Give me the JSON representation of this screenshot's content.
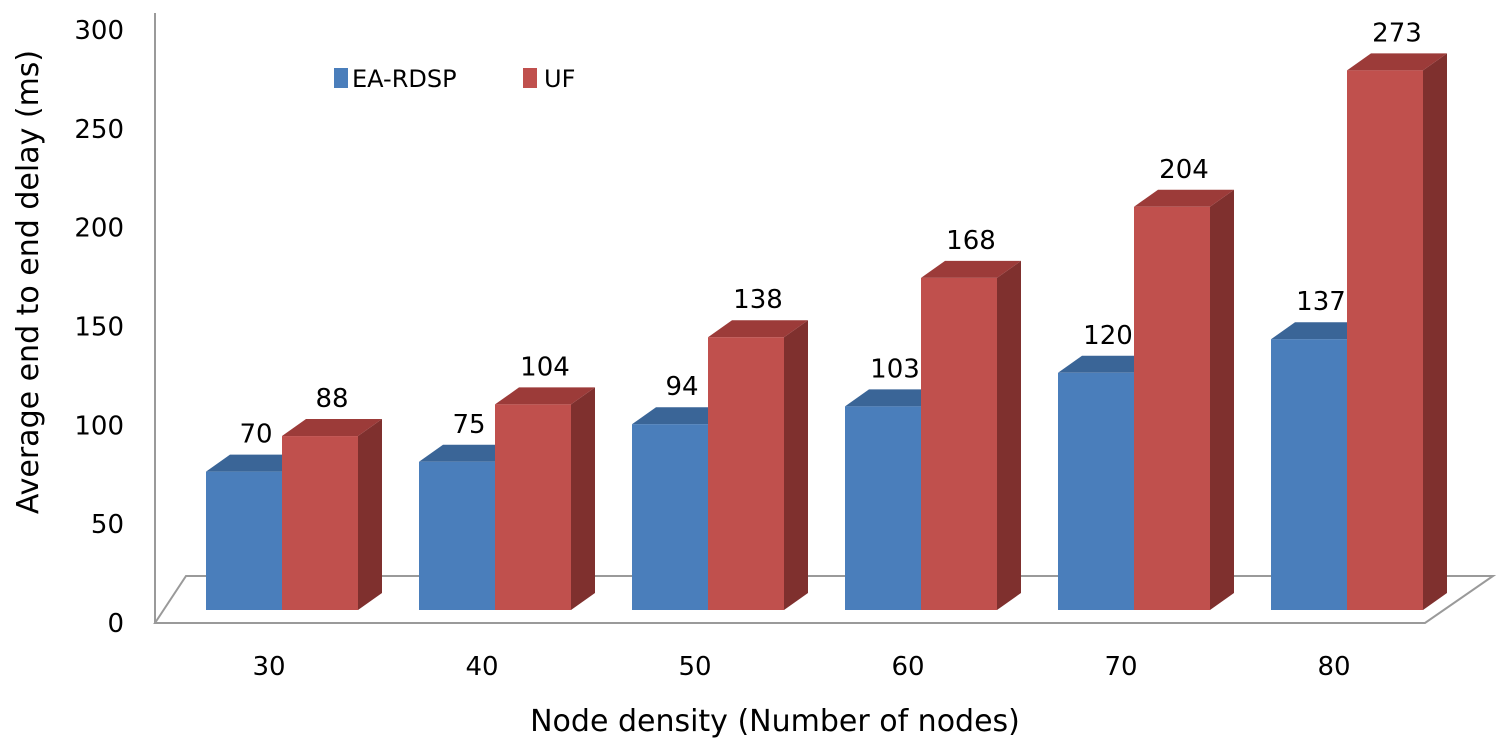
{
  "chart_data": {
    "type": "bar",
    "style": "3d-clustered-column",
    "title": "",
    "xlabel": "Node density (Number of nodes)",
    "ylabel": "Average end to end  delay (ms)",
    "categories": [
      "30",
      "40",
      "50",
      "60",
      "70",
      "80"
    ],
    "series": [
      {
        "name": "EA-RDSP",
        "values": [
          70,
          75,
          94,
          103,
          120,
          137
        ],
        "color": "#4a7ebb",
        "top_color": "#3a6597",
        "side_color": "#2f527c"
      },
      {
        "name": "UF",
        "values": [
          88,
          104,
          138,
          168,
          204,
          273
        ],
        "color": "#c0504d",
        "top_color": "#9c3b39",
        "side_color": "#7f302e"
      }
    ],
    "ylim": [
      0,
      300
    ],
    "yticks": [
      "0",
      "50",
      "100",
      "150",
      "200",
      "250",
      "300"
    ],
    "data_labels": true,
    "legend_position": "top-left",
    "grid": false
  }
}
